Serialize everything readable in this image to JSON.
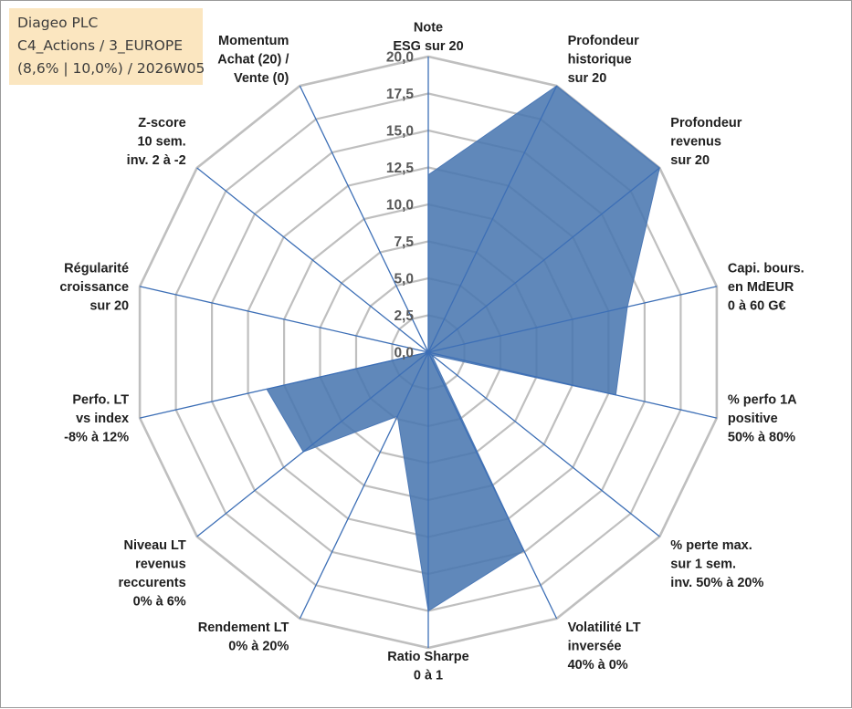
{
  "info_box": {
    "line1": "Diageo PLC",
    "line2": "C4_Actions / 3_EUROPE",
    "line3": "(8,6% | 10,0%) / 2026W05"
  },
  "colors": {
    "ring": "#bfbfbf",
    "spoke": "#3d6fb6",
    "fill": "#4a78b0",
    "fill_stroke": "#4d79b6",
    "text": "#1f1f1f",
    "tick_text": "#595959",
    "info_bg": "#fbe6c0"
  },
  "chart_data": {
    "type": "radar",
    "title": "",
    "rmin": 0,
    "rmax": 20,
    "ticks": [
      "0,0",
      "2,5",
      "5,0",
      "7,5",
      "10,0",
      "12,5",
      "15,0",
      "17,5",
      "20,0"
    ],
    "tick_values": [
      0,
      2.5,
      5,
      7.5,
      10,
      12.5,
      15,
      17.5,
      20
    ],
    "grid": true,
    "legend": "none",
    "axes": [
      "Note\nESG sur 20",
      "Profondeur\nhistorique\nsur 20",
      "Profondeur\nrevenus\nsur 20",
      "Capi. bours.\nen MdEUR\n0 à 60 G€",
      "% perfo 1A\npositive\n50% à 80%",
      "% perte max.\nsur 1 sem.\ninv. 50% à 20%",
      "Volatilité LT\ninversée\n40% à 0%",
      "Ratio Sharpe\n0 à 1",
      "Rendement LT\n0% à 20%",
      "Niveau LT\nrevenus\nreccurents\n0% à 6%",
      "Perfo. LT\nvs index\n-8% à 12%",
      "Régularité\ncroissance\nsur 20",
      "Z-score\n10 sem.\ninv. 2 à -2",
      "Momentum\nAchat (20) /\nVente (0)"
    ],
    "series": [
      {
        "values": [
          12,
          20,
          20,
          13.8,
          13,
          0.3,
          14.9,
          17.5,
          4.8,
          10.8,
          11.2,
          0,
          0,
          0
        ]
      }
    ]
  }
}
